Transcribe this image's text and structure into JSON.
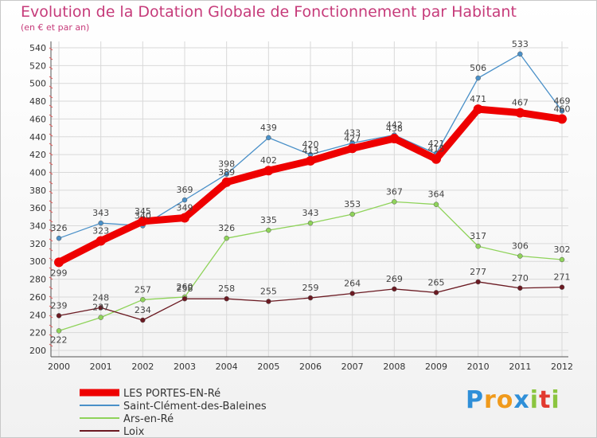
{
  "chart_data": {
    "type": "line",
    "title": "Evolution de la Dotation Globale de Fonctionnement par Habitant",
    "subtitle": "(en € et par an)",
    "xlabel": "",
    "ylabel": "",
    "ylim": [
      200,
      540
    ],
    "ytick_step": 20,
    "grid": true,
    "legend_position": "bottom-left",
    "categories": [
      "2000",
      "2001",
      "2002",
      "2003",
      "2004",
      "2005",
      "2006",
      "2007",
      "2008",
      "2009",
      "2010",
      "2011",
      "2012"
    ],
    "series": [
      {
        "name": "Saint-Clément-des-Baleines",
        "color": "#4a90c8",
        "values": [
          326,
          343,
          340,
          369,
          398,
          439,
          420,
          433,
          442,
          421,
          506,
          533,
          469
        ]
      },
      {
        "name": "Ars-en-Ré",
        "color": "#8fd35a",
        "values": [
          222,
          237,
          257,
          260,
          326,
          335,
          343,
          353,
          367,
          364,
          317,
          306,
          302
        ]
      },
      {
        "name": "Loix",
        "color": "#6b1a22",
        "values": [
          239,
          248,
          234,
          258,
          258,
          255,
          259,
          264,
          269,
          265,
          277,
          270,
          271
        ]
      },
      {
        "name": "LES PORTES-EN-Ré",
        "color": "#ee0000",
        "values": [
          299,
          323,
          345,
          349,
          389,
          402,
          413,
          427,
          438,
          415,
          471,
          467,
          460
        ]
      }
    ],
    "legend": [
      "LES PORTES-EN-Ré",
      "Saint-Clément-des-Baleines",
      "Ars-en-Ré",
      "Loix"
    ]
  },
  "brand": {
    "letters": [
      "P",
      "r",
      "o",
      "x",
      "i",
      "t",
      "i"
    ],
    "colors": [
      "#2f8fd8",
      "#f09a1c",
      "#f09a1c",
      "#2f8fd8",
      "#8bc53f",
      "#e23a2f",
      "#8bc53f"
    ]
  }
}
